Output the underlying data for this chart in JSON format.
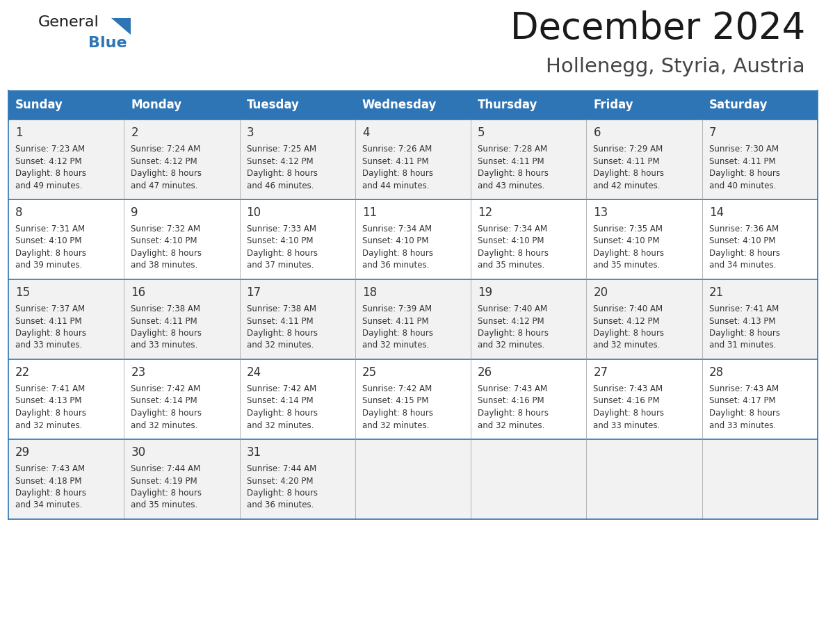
{
  "title": "December 2024",
  "subtitle": "Hollenegg, Styria, Austria",
  "days_of_week": [
    "Sunday",
    "Monday",
    "Tuesday",
    "Wednesday",
    "Thursday",
    "Friday",
    "Saturday"
  ],
  "header_bg": "#2E75B6",
  "header_text": "#FFFFFF",
  "row_bg_odd": "#F2F2F2",
  "row_bg_even": "#FFFFFF",
  "cell_border": "#AAAAAA",
  "day_num_color": "#333333",
  "text_color": "#333333",
  "title_color": "#1a1a1a",
  "subtitle_color": "#444444",
  "logo_black_color": "#1a1a1a",
  "logo_blue_color": "#2E75B6",
  "calendar_data": [
    [
      {
        "day": 1,
        "sunrise": "7:23 AM",
        "sunset": "4:12 PM",
        "daylight_line1": "Daylight: 8 hours",
        "daylight_line2": "and 49 minutes."
      },
      {
        "day": 2,
        "sunrise": "7:24 AM",
        "sunset": "4:12 PM",
        "daylight_line1": "Daylight: 8 hours",
        "daylight_line2": "and 47 minutes."
      },
      {
        "day": 3,
        "sunrise": "7:25 AM",
        "sunset": "4:12 PM",
        "daylight_line1": "Daylight: 8 hours",
        "daylight_line2": "and 46 minutes."
      },
      {
        "day": 4,
        "sunrise": "7:26 AM",
        "sunset": "4:11 PM",
        "daylight_line1": "Daylight: 8 hours",
        "daylight_line2": "and 44 minutes."
      },
      {
        "day": 5,
        "sunrise": "7:28 AM",
        "sunset": "4:11 PM",
        "daylight_line1": "Daylight: 8 hours",
        "daylight_line2": "and 43 minutes."
      },
      {
        "day": 6,
        "sunrise": "7:29 AM",
        "sunset": "4:11 PM",
        "daylight_line1": "Daylight: 8 hours",
        "daylight_line2": "and 42 minutes."
      },
      {
        "day": 7,
        "sunrise": "7:30 AM",
        "sunset": "4:11 PM",
        "daylight_line1": "Daylight: 8 hours",
        "daylight_line2": "and 40 minutes."
      }
    ],
    [
      {
        "day": 8,
        "sunrise": "7:31 AM",
        "sunset": "4:10 PM",
        "daylight_line1": "Daylight: 8 hours",
        "daylight_line2": "and 39 minutes."
      },
      {
        "day": 9,
        "sunrise": "7:32 AM",
        "sunset": "4:10 PM",
        "daylight_line1": "Daylight: 8 hours",
        "daylight_line2": "and 38 minutes."
      },
      {
        "day": 10,
        "sunrise": "7:33 AM",
        "sunset": "4:10 PM",
        "daylight_line1": "Daylight: 8 hours",
        "daylight_line2": "and 37 minutes."
      },
      {
        "day": 11,
        "sunrise": "7:34 AM",
        "sunset": "4:10 PM",
        "daylight_line1": "Daylight: 8 hours",
        "daylight_line2": "and 36 minutes."
      },
      {
        "day": 12,
        "sunrise": "7:34 AM",
        "sunset": "4:10 PM",
        "daylight_line1": "Daylight: 8 hours",
        "daylight_line2": "and 35 minutes."
      },
      {
        "day": 13,
        "sunrise": "7:35 AM",
        "sunset": "4:10 PM",
        "daylight_line1": "Daylight: 8 hours",
        "daylight_line2": "and 35 minutes."
      },
      {
        "day": 14,
        "sunrise": "7:36 AM",
        "sunset": "4:10 PM",
        "daylight_line1": "Daylight: 8 hours",
        "daylight_line2": "and 34 minutes."
      }
    ],
    [
      {
        "day": 15,
        "sunrise": "7:37 AM",
        "sunset": "4:11 PM",
        "daylight_line1": "Daylight: 8 hours",
        "daylight_line2": "and 33 minutes."
      },
      {
        "day": 16,
        "sunrise": "7:38 AM",
        "sunset": "4:11 PM",
        "daylight_line1": "Daylight: 8 hours",
        "daylight_line2": "and 33 minutes."
      },
      {
        "day": 17,
        "sunrise": "7:38 AM",
        "sunset": "4:11 PM",
        "daylight_line1": "Daylight: 8 hours",
        "daylight_line2": "and 32 minutes."
      },
      {
        "day": 18,
        "sunrise": "7:39 AM",
        "sunset": "4:11 PM",
        "daylight_line1": "Daylight: 8 hours",
        "daylight_line2": "and 32 minutes."
      },
      {
        "day": 19,
        "sunrise": "7:40 AM",
        "sunset": "4:12 PM",
        "daylight_line1": "Daylight: 8 hours",
        "daylight_line2": "and 32 minutes."
      },
      {
        "day": 20,
        "sunrise": "7:40 AM",
        "sunset": "4:12 PM",
        "daylight_line1": "Daylight: 8 hours",
        "daylight_line2": "and 32 minutes."
      },
      {
        "day": 21,
        "sunrise": "7:41 AM",
        "sunset": "4:13 PM",
        "daylight_line1": "Daylight: 8 hours",
        "daylight_line2": "and 31 minutes."
      }
    ],
    [
      {
        "day": 22,
        "sunrise": "7:41 AM",
        "sunset": "4:13 PM",
        "daylight_line1": "Daylight: 8 hours",
        "daylight_line2": "and 32 minutes."
      },
      {
        "day": 23,
        "sunrise": "7:42 AM",
        "sunset": "4:14 PM",
        "daylight_line1": "Daylight: 8 hours",
        "daylight_line2": "and 32 minutes."
      },
      {
        "day": 24,
        "sunrise": "7:42 AM",
        "sunset": "4:14 PM",
        "daylight_line1": "Daylight: 8 hours",
        "daylight_line2": "and 32 minutes."
      },
      {
        "day": 25,
        "sunrise": "7:42 AM",
        "sunset": "4:15 PM",
        "daylight_line1": "Daylight: 8 hours",
        "daylight_line2": "and 32 minutes."
      },
      {
        "day": 26,
        "sunrise": "7:43 AM",
        "sunset": "4:16 PM",
        "daylight_line1": "Daylight: 8 hours",
        "daylight_line2": "and 32 minutes."
      },
      {
        "day": 27,
        "sunrise": "7:43 AM",
        "sunset": "4:16 PM",
        "daylight_line1": "Daylight: 8 hours",
        "daylight_line2": "and 33 minutes."
      },
      {
        "day": 28,
        "sunrise": "7:43 AM",
        "sunset": "4:17 PM",
        "daylight_line1": "Daylight: 8 hours",
        "daylight_line2": "and 33 minutes."
      }
    ],
    [
      {
        "day": 29,
        "sunrise": "7:43 AM",
        "sunset": "4:18 PM",
        "daylight_line1": "Daylight: 8 hours",
        "daylight_line2": "and 34 minutes."
      },
      {
        "day": 30,
        "sunrise": "7:44 AM",
        "sunset": "4:19 PM",
        "daylight_line1": "Daylight: 8 hours",
        "daylight_line2": "and 35 minutes."
      },
      {
        "day": 31,
        "sunrise": "7:44 AM",
        "sunset": "4:20 PM",
        "daylight_line1": "Daylight: 8 hours",
        "daylight_line2": "and 36 minutes."
      },
      null,
      null,
      null,
      null
    ]
  ]
}
